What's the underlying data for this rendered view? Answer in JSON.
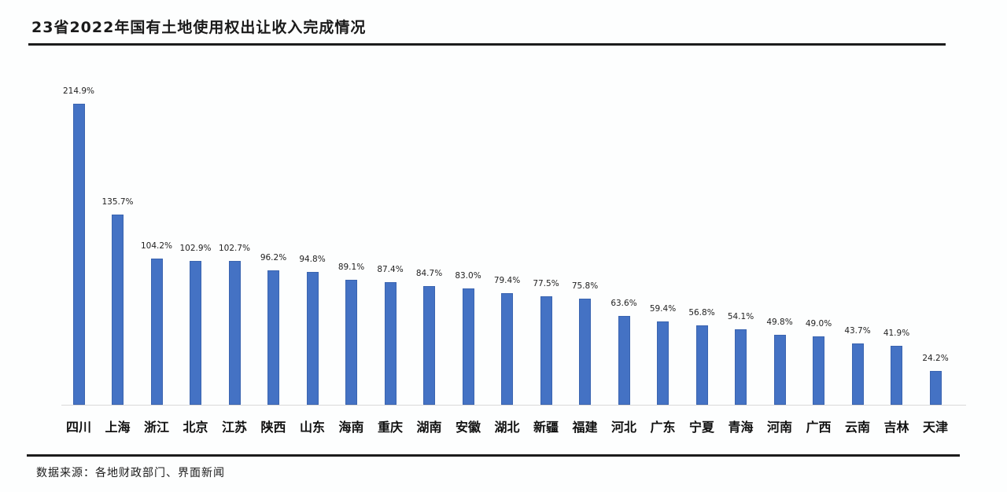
{
  "header": {
    "title": "23省2022年国有土地使用权出让收入完成情况"
  },
  "footer": {
    "source": "数据来源：各地财政部门、界面新闻"
  },
  "colors": {
    "bar": "#4472c4",
    "rule": "#1c1c1c",
    "axis": "#d9d9d9"
  },
  "chart_data": {
    "type": "bar",
    "title": "23省2022年国有土地使用权出让收入完成情况",
    "xlabel": "",
    "ylabel": "",
    "unit": "%",
    "grid": false,
    "legend": null,
    "ylim": [
      0,
      220
    ],
    "categories": [
      "四川",
      "上海",
      "浙江",
      "北京",
      "江苏",
      "陕西",
      "山东",
      "海南",
      "重庆",
      "湖南",
      "安徽",
      "湖北",
      "新疆",
      "福建",
      "河北",
      "广东",
      "宁夏",
      "青海",
      "河南",
      "广西",
      "云南",
      "吉林",
      "天津"
    ],
    "values": [
      214.9,
      135.7,
      104.2,
      102.9,
      102.7,
      96.2,
      94.8,
      89.1,
      87.4,
      84.7,
      83.0,
      79.4,
      77.5,
      75.8,
      63.6,
      59.4,
      56.8,
      54.1,
      49.8,
      49.0,
      43.7,
      41.9,
      24.2
    ],
    "labels": [
      "214.9%",
      "135.7%",
      "104.2%",
      "102.9%",
      "102.7%",
      "96.2%",
      "94.8%",
      "89.1%",
      "87.4%",
      "84.7%",
      "83.0%",
      "79.4%",
      "77.5%",
      "75.8%",
      "63.6%",
      "59.4%",
      "56.8%",
      "54.1%",
      "49.8%",
      "49.0%",
      "43.7%",
      "41.9%",
      "24.2%"
    ],
    "source": "数据来源：各地财政部门、界面新闻"
  }
}
